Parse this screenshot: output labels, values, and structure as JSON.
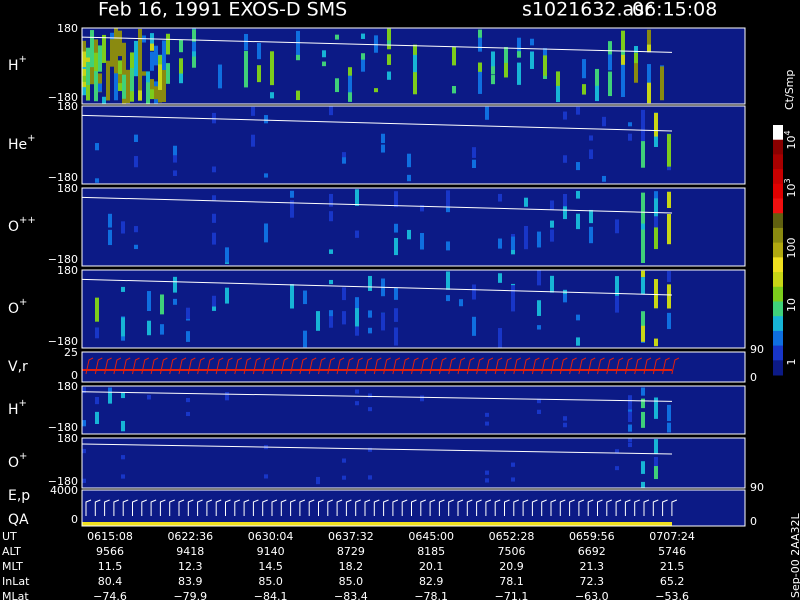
{
  "header": {
    "title": "Feb 16, 1991   EXOS-D SMS",
    "file": "s1021632.asr",
    "time": "06:15:08"
  },
  "panels": [
    {
      "label": "H",
      "sup": "+",
      "ticks": [
        "180",
        "−180"
      ]
    },
    {
      "label": "He",
      "sup": "+",
      "ticks": [
        "180",
        "−180"
      ]
    },
    {
      "label": "O",
      "sup": "++",
      "ticks": [
        "180",
        "−180"
      ]
    },
    {
      "label": "O",
      "sup": "+",
      "ticks": [
        "180",
        "−180"
      ]
    },
    {
      "label": "V,r",
      "ticks": [
        "25",
        "0"
      ],
      "right_ticks": [
        "90",
        "0"
      ]
    },
    {
      "label": "H",
      "sup": "+",
      "ticks": [
        "180",
        "−180"
      ]
    },
    {
      "label": "O",
      "sup": "+",
      "ticks": [
        "180",
        "−180"
      ]
    },
    {
      "label": "E,p",
      "label2": "QA",
      "ticks": [
        "4000",
        "0"
      ],
      "right_ticks": [
        "90",
        "0"
      ]
    }
  ],
  "colorbar": {
    "unit": "Ct/Smp",
    "labels": [
      {
        "base": "10",
        "exp": "4"
      },
      {
        "base": "10",
        "exp": "3"
      },
      {
        "base": "100"
      },
      {
        "base": "10"
      },
      {
        "base": "1"
      }
    ]
  },
  "table": {
    "rows": [
      {
        "label": "UT",
        "values": [
          "0615:08",
          "0622:36",
          "0630:04",
          "0637:32",
          "0645:00",
          "0652:28",
          "0659:56",
          "0707:24"
        ]
      },
      {
        "label": "ALT",
        "values": [
          "9566",
          "9418",
          "9140",
          "8729",
          "8185",
          "7506",
          "6692",
          "5746"
        ]
      },
      {
        "label": "MLT",
        "values": [
          "11.5",
          "12.3",
          "14.5",
          "18.2",
          "20.1",
          "20.9",
          "21.3",
          "21.5"
        ]
      },
      {
        "label": "InLat",
        "values": [
          "80.4",
          "83.9",
          "85.0",
          "85.0",
          "82.9",
          "78.1",
          "72.3",
          "65.2"
        ]
      },
      {
        "label": "MLat",
        "values": [
          "−74.6",
          "−79.9",
          "−84.1",
          "−83.4",
          "−78.1",
          "−71.1",
          "−63.0",
          "−53.6"
        ]
      }
    ]
  },
  "footer": "Sep-00  2AA32L"
}
